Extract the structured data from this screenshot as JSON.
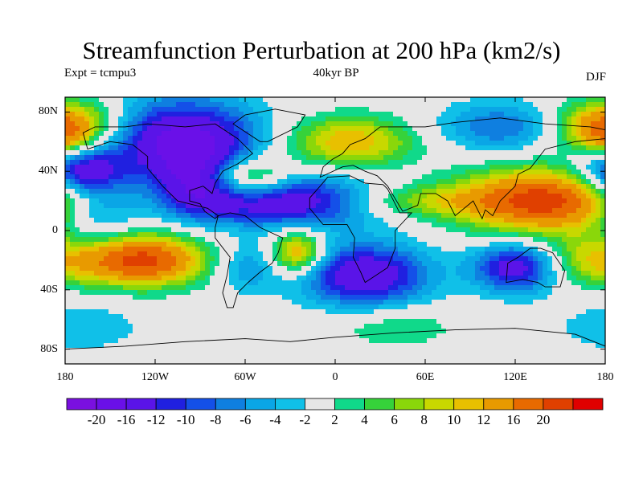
{
  "header": {
    "title": "Streamfunction Perturbation at 200 hPa (km2/s)",
    "left": "Expt = tcmpu3",
    "center": "40kyr BP",
    "right": "DJF"
  },
  "axes": {
    "y_ticks": [
      {
        "value": 80,
        "label": "80N"
      },
      {
        "value": 40,
        "label": "40N"
      },
      {
        "value": 0,
        "label": "0"
      },
      {
        "value": -40,
        "label": "40S"
      },
      {
        "value": -80,
        "label": "80S"
      }
    ],
    "x_ticks": [
      {
        "value": -180,
        "label": "180"
      },
      {
        "value": -120,
        "label": "120W"
      },
      {
        "value": -60,
        "label": "60W"
      },
      {
        "value": 0,
        "label": "0"
      },
      {
        "value": 60,
        "label": "60E"
      },
      {
        "value": 120,
        "label": "120E"
      },
      {
        "value": 180,
        "label": "180"
      }
    ]
  },
  "colorbar": {
    "colors": [
      "#7a10e0",
      "#6a10e8",
      "#5a14e8",
      "#2020e0",
      "#1450e8",
      "#0f7fe0",
      "#0aa6e6",
      "#10c0e8",
      "#e6e6e6",
      "#10d98a",
      "#36d23a",
      "#8ad70a",
      "#c8d800",
      "#e8c000",
      "#e89a00",
      "#e86a00",
      "#e04000",
      "#e00000"
    ],
    "labels": [
      "-20",
      "-16",
      "-12",
      "-10",
      "-8",
      "-6",
      "-4",
      "-2",
      "2",
      "4",
      "6",
      "8",
      "10",
      "12",
      "16",
      "20"
    ]
  },
  "field": {
    "blobs": [
      {
        "lon": -100,
        "lat": 60,
        "a": -18,
        "sx": 35,
        "sy": 20
      },
      {
        "lon": -90,
        "lat": 30,
        "a": -10,
        "sx": 20,
        "sy": 15
      },
      {
        "lon": -30,
        "lat": 20,
        "a": -16,
        "sx": 45,
        "sy": 12
      },
      {
        "lon": 20,
        "lat": -30,
        "a": -16,
        "sx": 30,
        "sy": 15
      },
      {
        "lon": -170,
        "lat": 40,
        "a": -16,
        "sx": 20,
        "sy": 12
      },
      {
        "lon": -160,
        "lat": 10,
        "a": -8,
        "sx": 20,
        "sy": 15
      },
      {
        "lon": -60,
        "lat": -25,
        "a": -6,
        "sx": 15,
        "sy": 12
      },
      {
        "lon": 120,
        "lat": -25,
        "a": -14,
        "sx": 20,
        "sy": 12
      },
      {
        "lon": 110,
        "lat": 70,
        "a": -8,
        "sx": 30,
        "sy": 12
      },
      {
        "lon": -170,
        "lat": -65,
        "a": -4,
        "sx": 30,
        "sy": 12
      },
      {
        "lon": 140,
        "lat": 20,
        "a": 22,
        "sx": 40,
        "sy": 15
      },
      {
        "lon": 50,
        "lat": 20,
        "a": 8,
        "sx": 40,
        "sy": 8
      },
      {
        "lon": -130,
        "lat": -20,
        "a": 22,
        "sx": 30,
        "sy": 12
      },
      {
        "lon": -25,
        "lat": -15,
        "a": 14,
        "sx": 12,
        "sy": 10
      },
      {
        "lon": 10,
        "lat": 60,
        "a": 12,
        "sx": 30,
        "sy": 12
      },
      {
        "lon": -60,
        "lat": 35,
        "a": 14,
        "sx": 20,
        "sy": 10
      },
      {
        "lon": -170,
        "lat": 70,
        "a": 10,
        "sx": 20,
        "sy": 12
      },
      {
        "lon": 170,
        "lat": 70,
        "a": 10,
        "sx": 20,
        "sy": 12
      },
      {
        "lon": 40,
        "lat": -65,
        "a": 4,
        "sx": 30,
        "sy": 10
      },
      {
        "lon": 170,
        "lat": -20,
        "a": 8,
        "sx": 20,
        "sy": 12
      },
      {
        "lon": -180,
        "lat": 60,
        "a": 6,
        "sx": 10,
        "sy": 10
      }
    ]
  },
  "land": [
    [
      [
        -168,
        66
      ],
      [
        -160,
        70
      ],
      [
        -140,
        70
      ],
      [
        -125,
        72
      ],
      [
        -100,
        70
      ],
      [
        -80,
        72
      ],
      [
        -65,
        62
      ],
      [
        -55,
        52
      ],
      [
        -65,
        45
      ],
      [
        -75,
        40
      ],
      [
        -80,
        32
      ],
      [
        -82,
        25
      ],
      [
        -88,
        30
      ],
      [
        -97,
        27
      ],
      [
        -97,
        20
      ],
      [
        -90,
        18
      ],
      [
        -87,
        13
      ],
      [
        -80,
        8
      ],
      [
        -78,
        10
      ],
      [
        -85,
        15
      ],
      [
        -105,
        20
      ],
      [
        -115,
        30
      ],
      [
        -125,
        42
      ],
      [
        -125,
        50
      ],
      [
        -135,
        58
      ],
      [
        -150,
        60
      ],
      [
        -165,
        55
      ],
      [
        -168,
        66
      ]
    ],
    [
      [
        -78,
        10
      ],
      [
        -70,
        12
      ],
      [
        -60,
        10
      ],
      [
        -50,
        2
      ],
      [
        -35,
        -5
      ],
      [
        -38,
        -15
      ],
      [
        -42,
        -22
      ],
      [
        -50,
        -28
      ],
      [
        -58,
        -35
      ],
      [
        -65,
        -42
      ],
      [
        -68,
        -52
      ],
      [
        -72,
        -52
      ],
      [
        -75,
        -42
      ],
      [
        -72,
        -30
      ],
      [
        -70,
        -18
      ],
      [
        -80,
        -5
      ],
      [
        -80,
        2
      ],
      [
        -78,
        10
      ]
    ],
    [
      [
        -17,
        15
      ],
      [
        -17,
        22
      ],
      [
        -10,
        30
      ],
      [
        -5,
        36
      ],
      [
        10,
        37
      ],
      [
        20,
        32
      ],
      [
        32,
        31
      ],
      [
        35,
        28
      ],
      [
        43,
        12
      ],
      [
        51,
        12
      ],
      [
        40,
        0
      ],
      [
        40,
        -12
      ],
      [
        35,
        -25
      ],
      [
        20,
        -35
      ],
      [
        17,
        -28
      ],
      [
        12,
        -18
      ],
      [
        13,
        -5
      ],
      [
        8,
        4
      ],
      [
        -8,
        4
      ],
      [
        -17,
        15
      ]
    ],
    [
      [
        -10,
        36
      ],
      [
        -8,
        43
      ],
      [
        -2,
        48
      ],
      [
        5,
        52
      ],
      [
        10,
        58
      ],
      [
        20,
        62
      ],
      [
        30,
        70
      ],
      [
        60,
        70
      ],
      [
        80,
        73
      ],
      [
        110,
        76
      ],
      [
        140,
        72
      ],
      [
        170,
        70
      ],
      [
        180,
        68
      ],
      [
        180,
        62
      ],
      [
        160,
        60
      ],
      [
        140,
        55
      ],
      [
        130,
        42
      ],
      [
        122,
        38
      ],
      [
        120,
        30
      ],
      [
        110,
        20
      ],
      [
        105,
        10
      ],
      [
        100,
        14
      ],
      [
        98,
        8
      ],
      [
        92,
        20
      ],
      [
        80,
        10
      ],
      [
        75,
        20
      ],
      [
        67,
        25
      ],
      [
        57,
        25
      ],
      [
        55,
        17
      ],
      [
        45,
        13
      ],
      [
        35,
        30
      ],
      [
        28,
        37
      ],
      [
        20,
        40
      ],
      [
        12,
        44
      ],
      [
        5,
        43
      ],
      [
        -10,
        36
      ]
    ],
    [
      [
        115,
        -22
      ],
      [
        114,
        -35
      ],
      [
        125,
        -33
      ],
      [
        135,
        -35
      ],
      [
        140,
        -38
      ],
      [
        150,
        -38
      ],
      [
        153,
        -27
      ],
      [
        145,
        -15
      ],
      [
        137,
        -12
      ],
      [
        130,
        -12
      ],
      [
        122,
        -18
      ],
      [
        115,
        -22
      ]
    ],
    [
      [
        -50,
        60
      ],
      [
        -45,
        60
      ],
      [
        -25,
        70
      ],
      [
        -20,
        78
      ],
      [
        -40,
        82
      ],
      [
        -60,
        78
      ],
      [
        -68,
        72
      ],
      [
        -50,
        60
      ]
    ],
    [
      [
        -180,
        -80
      ],
      [
        -140,
        -78
      ],
      [
        -100,
        -75
      ],
      [
        -60,
        -73
      ],
      [
        -30,
        -75
      ],
      [
        0,
        -72
      ],
      [
        40,
        -69
      ],
      [
        80,
        -67
      ],
      [
        120,
        -66
      ],
      [
        160,
        -70
      ],
      [
        180,
        -78
      ],
      [
        180,
        -90
      ],
      [
        -180,
        -90
      ]
    ]
  ]
}
